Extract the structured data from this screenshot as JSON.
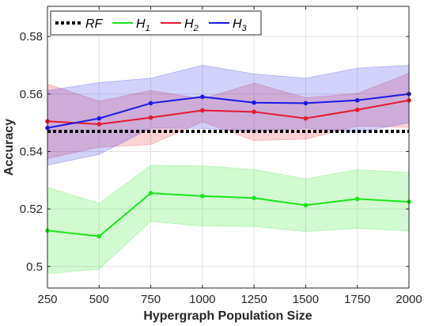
{
  "chart_data": {
    "type": "line",
    "xlabel": "Hypergraph Population Size",
    "ylabel": "Accuracy",
    "x": [
      250,
      500,
      750,
      1000,
      1250,
      1500,
      1750,
      2000
    ],
    "x_tick_labels": [
      "250",
      "500",
      "750",
      "1000",
      "1250",
      "1500",
      "1750",
      "2000"
    ],
    "y_ticks": [
      0.5,
      0.52,
      0.54,
      0.56,
      0.58
    ],
    "y_tick_labels": [
      "0.5",
      "0.52",
      "0.54",
      "0.56",
      "0.58"
    ],
    "xlim": [
      250,
      2000
    ],
    "ylim": [
      0.4925,
      0.5905
    ],
    "grid": true,
    "legend_position": "top-left",
    "reference": {
      "name": "RF",
      "value": 0.547,
      "style": "dotted",
      "color": "#000000"
    },
    "series": [
      {
        "name": "H",
        "subscript": "1",
        "color": "#19e619",
        "values": [
          0.5125,
          0.5105,
          0.5255,
          0.5245,
          0.5238,
          0.5213,
          0.5235,
          0.5225
        ],
        "upper": [
          0.5275,
          0.522,
          0.5352,
          0.535,
          0.5337,
          0.5305,
          0.5337,
          0.5327
        ],
        "lower": [
          0.4975,
          0.499,
          0.5157,
          0.514,
          0.5139,
          0.5121,
          0.5133,
          0.5123
        ]
      },
      {
        "name": "H",
        "subscript": "2",
        "color": "#e6192e",
        "values": [
          0.5505,
          0.5495,
          0.5518,
          0.5543,
          0.5538,
          0.5515,
          0.5545,
          0.5578
        ],
        "upper": [
          0.5635,
          0.5575,
          0.5612,
          0.5583,
          0.5638,
          0.5587,
          0.5602,
          0.5672
        ],
        "lower": [
          0.5375,
          0.5415,
          0.5424,
          0.5503,
          0.5438,
          0.5443,
          0.5488,
          0.5484
        ]
      },
      {
        "name": "H",
        "subscript": "3",
        "color": "#1919e6",
        "values": [
          0.5482,
          0.5515,
          0.5568,
          0.559,
          0.557,
          0.5568,
          0.5578,
          0.56
        ],
        "upper": [
          0.5612,
          0.564,
          0.5655,
          0.57,
          0.567,
          0.5655,
          0.569,
          0.57
        ],
        "lower": [
          0.5352,
          0.539,
          0.5481,
          0.548,
          0.547,
          0.5481,
          0.5466,
          0.55
        ]
      }
    ]
  }
}
